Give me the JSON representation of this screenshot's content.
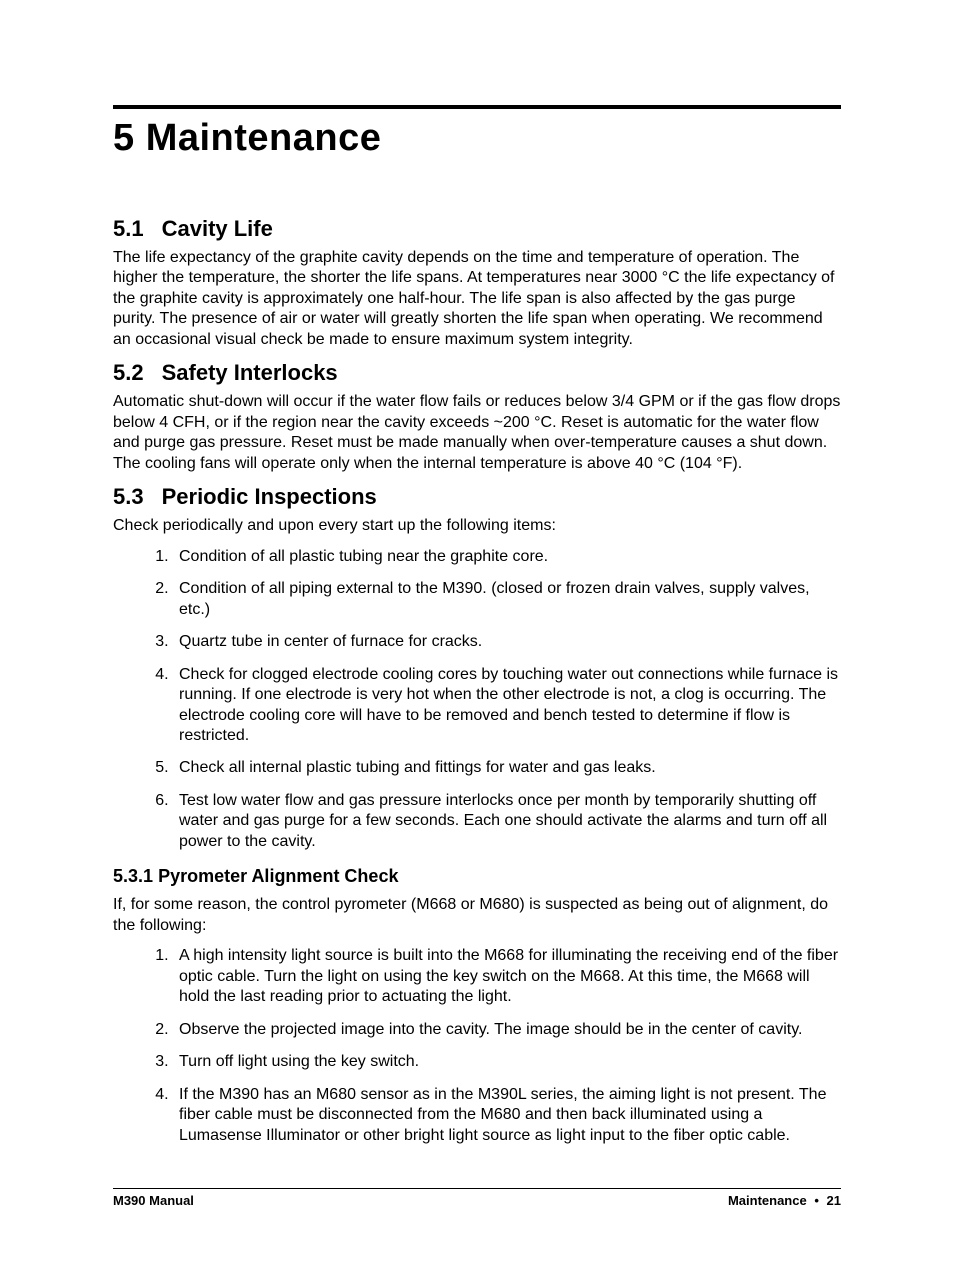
{
  "chapter": {
    "number": "5",
    "title": "Maintenance"
  },
  "sections": {
    "s51": {
      "num": "5.1",
      "title": "Cavity Life",
      "para": "The life expectancy of the graphite cavity depends on the time and temperature of operation. The higher the temperature, the shorter the life spans. At temperatures near 3000 °C the life expectancy of the graphite cavity is approximately one half-hour. The life span is also affected by the gas purge purity. The presence of air or water will greatly shorten the life span when operating. We recommend an occasional visual check be made to ensure maximum system integrity."
    },
    "s52": {
      "num": "5.2",
      "title": "Safety Interlocks",
      "para": "Automatic shut-down will occur if the water flow fails or reduces below 3/4 GPM or if the gas flow drops below 4 CFH, or if the region near the cavity exceeds ~200 °C. Reset is automatic for the water flow and purge gas pressure. Reset must be made manually when over-temperature causes a shut down. The cooling fans will operate only when the internal temperature is above 40 °C (104 °F)."
    },
    "s53": {
      "num": "5.3",
      "title": "Periodic Inspections",
      "intro": "Check periodically and upon every start up the following items:",
      "items": [
        "Condition of all plastic tubing near the graphite core.",
        "Condition of all piping external to the M390. (closed or frozen drain valves, supply valves, etc.)",
        "Quartz tube in center of furnace for cracks.",
        "Check for clogged electrode cooling cores by touching water out connections while furnace is running. If one electrode is very hot when the other electrode is not, a clog is occurring. The electrode cooling core will have to be removed and bench tested to determine if flow is restricted.",
        "Check all internal plastic tubing and fittings for water and gas leaks.",
        "Test low water flow and gas pressure interlocks once per month by temporarily shutting off water and gas purge for a few seconds. Each one should activate the alarms and turn off all power to the cavity."
      ]
    },
    "s531": {
      "num": "5.3.1",
      "title": "Pyrometer Alignment Check",
      "intro": "If, for some reason, the control pyrometer (M668 or M680) is suspected as being out of alignment, do the following:",
      "items": [
        "A high intensity light source is built into the M668 for illuminating the receiving end of the fiber optic cable. Turn the light on using the key switch on the M668. At this time, the M668 will hold the last reading prior to actuating the light.",
        "Observe the projected image into the cavity. The image should be in the center of cavity.",
        "Turn off light using the key switch.",
        "If the M390 has an M680 sensor as in the M390L series, the aiming light is not present. The fiber cable must be disconnected from the M680 and then back illuminated using a Lumasense Illuminator or other bright light source as light input to the fiber optic cable."
      ]
    }
  },
  "footer": {
    "left": "M390 Manual",
    "section": "Maintenance",
    "bullet": "•",
    "page": "21"
  }
}
